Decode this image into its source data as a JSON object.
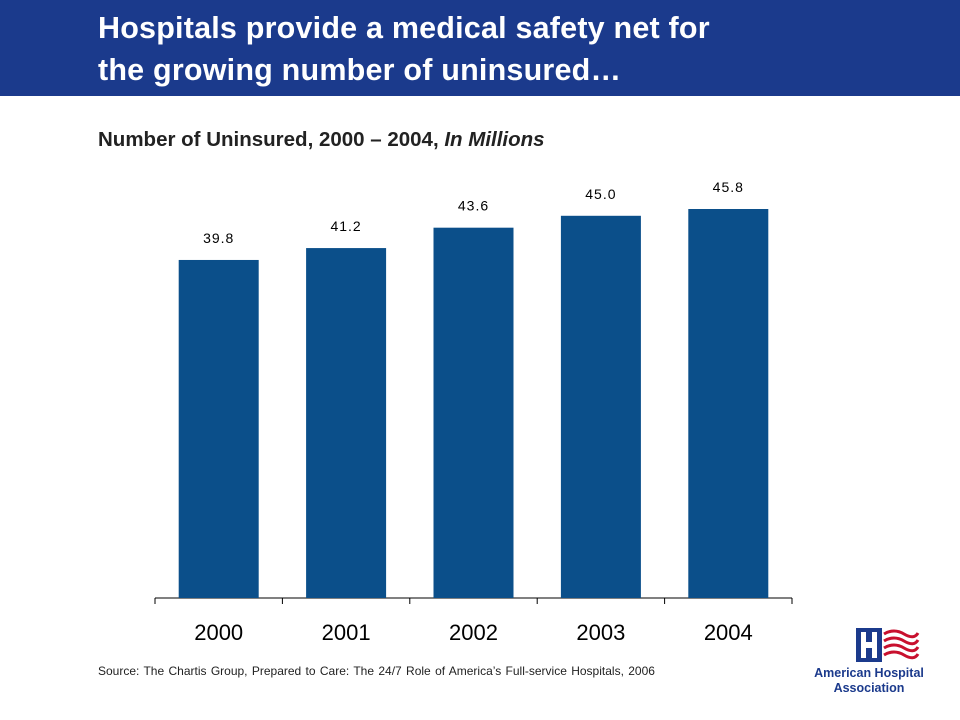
{
  "slide": {
    "title_line1": "Hospitals provide a medical safety net for",
    "title_line2": "the growing number of uninsured…",
    "subtitle_main": "Number of Uninsured, 2000 – 2004, ",
    "subtitle_italic": "In Millions",
    "source": "Source:  The Chartis Group, Prepared to Care:  The 24/7 Role of America’s Full-service Hospitals,  2006"
  },
  "logo": {
    "icon": "hospital-h-flag-icon",
    "line1": "American Hospital",
    "line2": "Association",
    "colors": {
      "blue": "#1b3a8c",
      "red": "#c8102e"
    }
  },
  "colors": {
    "title_bar": "#1b3a8c",
    "bar": "#0b4f8a"
  },
  "chart_data": {
    "type": "bar",
    "title": "Number of Uninsured, 2000 – 2004, In Millions",
    "categories": [
      "2000",
      "2001",
      "2002",
      "2003",
      "2004"
    ],
    "values": [
      39.8,
      41.2,
      43.6,
      45.0,
      45.8
    ],
    "value_labels": [
      "39.8",
      "41.2",
      "43.6",
      "45.0",
      "45.8"
    ],
    "ylim": [
      0,
      60
    ],
    "grid": false,
    "legend": "none",
    "xlabel": "",
    "ylabel": ""
  }
}
